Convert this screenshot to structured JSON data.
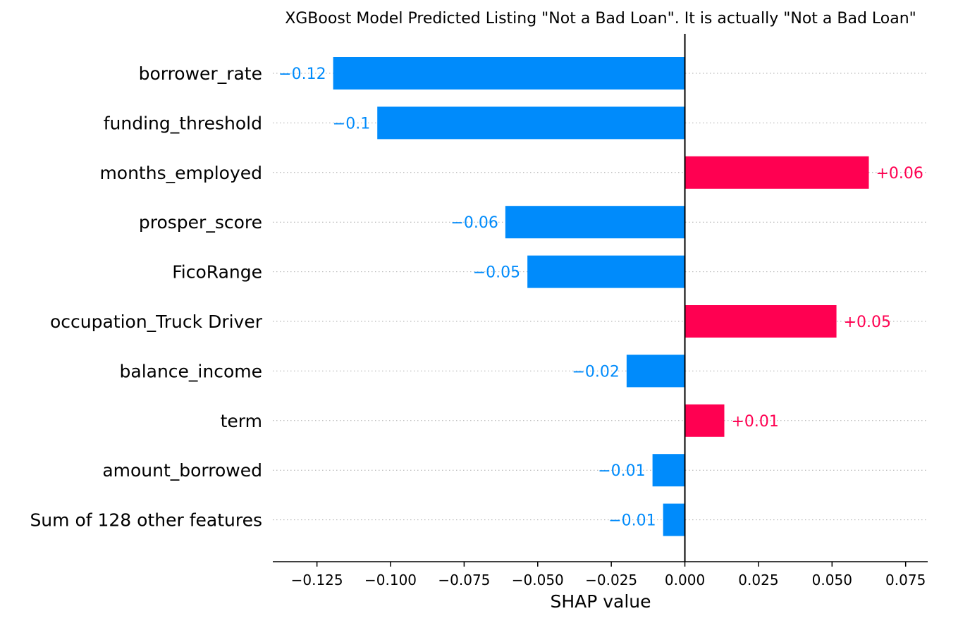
{
  "chart_data": {
    "type": "bar",
    "orientation": "horizontal",
    "title": "XGBoost Model Predicted Listing \"Not a Bad Loan\". It is actually \"Not a Bad Loan\"",
    "xlabel": "SHAP value",
    "ylabel": "",
    "xlim": [
      -0.14,
      0.0825
    ],
    "x_ticks": [
      -0.125,
      -0.1,
      -0.075,
      -0.05,
      -0.025,
      0.0,
      0.025,
      0.05,
      0.075
    ],
    "x_tick_labels": [
      "−0.125",
      "−0.100",
      "−0.075",
      "−0.050",
      "−0.025",
      "0.000",
      "0.025",
      "0.050",
      "0.075"
    ],
    "grid": "dotted horizontal guide lines per feature",
    "legend": "none",
    "colors": {
      "positive": "#ff0051",
      "negative": "#008bfb"
    },
    "categories": [
      "borrower_rate",
      "funding_threshold",
      "months_employed",
      "prosper_score",
      "FicoRange",
      "occupation_Truck Driver",
      "balance_income",
      "term",
      "amount_borrowed",
      "Sum of 128 other features"
    ],
    "values": [
      -0.1195,
      -0.1045,
      0.0625,
      -0.061,
      -0.0535,
      0.0515,
      -0.0198,
      0.0134,
      -0.011,
      -0.0074
    ],
    "value_labels": [
      "−0.12",
      "−0.1",
      "+0.06",
      "−0.06",
      "−0.05",
      "+0.05",
      "−0.02",
      "+0.01",
      "−0.01",
      "−0.01"
    ]
  }
}
